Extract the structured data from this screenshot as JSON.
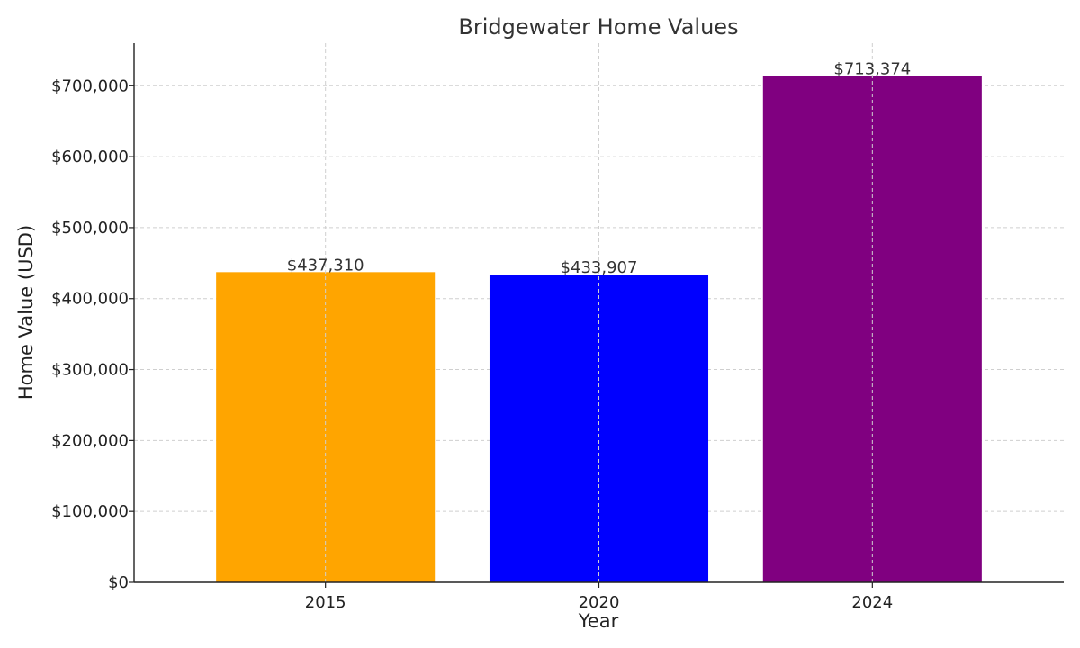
{
  "chart_data": {
    "type": "bar",
    "title": "Bridgewater Home Values",
    "xlabel": "Year",
    "ylabel": "Home Value (USD)",
    "categories": [
      "2015",
      "2020",
      "2024"
    ],
    "values": [
      437310,
      433907,
      713374
    ],
    "data_labels": [
      "$437,310",
      "$433,907",
      "$713,374"
    ],
    "colors": [
      "#FFA500",
      "#0000FF",
      "#800080"
    ],
    "ylim": [
      0,
      760000
    ],
    "yticks": [
      0,
      100000,
      200000,
      300000,
      400000,
      500000,
      600000,
      700000
    ],
    "ytick_labels": [
      "$0",
      "$100,000",
      "$200,000",
      "$300,000",
      "$400,000",
      "$500,000",
      "$600,000",
      "$700,000"
    ],
    "grid": true,
    "legend": "none"
  }
}
